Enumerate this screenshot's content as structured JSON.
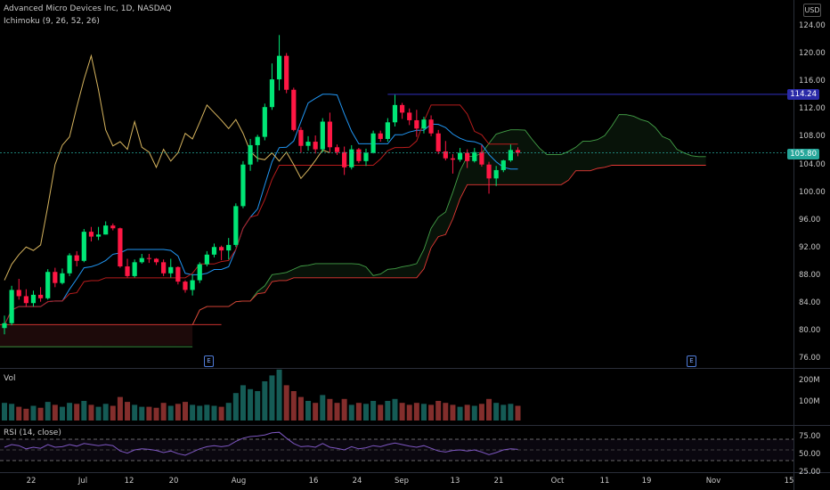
{
  "header": {
    "symbol_line": "Advanced Micro Devices Inc, 1D, NASDAQ",
    "indicator_ichimoku": "Ichimoku (9, 26, 52, 26)",
    "volume_label": "Vol",
    "rsi_label": "RSI (14, close)",
    "currency": "USD"
  },
  "price_axis": {
    "ticks": [
      "124.00",
      "120.00",
      "116.00",
      "112.00",
      "108.00",
      "104.00",
      "100.00",
      "96.00",
      "92.00",
      "88.00",
      "84.00",
      "80.00",
      "76.00"
    ],
    "tag_high": "114.24",
    "tag_last": "105.80",
    "tag_high_color": "#2a2aa8",
    "tag_last_color": "#26a69a"
  },
  "volume_axis": {
    "ticks": [
      "200M",
      "100M"
    ]
  },
  "rsi_axis": {
    "ticks": [
      "75.00",
      "50.00",
      "25.00"
    ]
  },
  "time_axis": {
    "labels": [
      "22",
      "Jul",
      "12",
      "20",
      "Aug",
      "16",
      "24",
      "Sep",
      "13",
      "21",
      "Oct",
      "11",
      "19",
      "Nov",
      "15"
    ]
  },
  "earnings_marker": "E",
  "colors": {
    "up": "#26a69a",
    "down": "#ef5350",
    "bright_up": "#00e676",
    "bright_down": "#ff1744",
    "tenkan": "#2196f3",
    "kijun": "#b71c1c",
    "chikou": "#d6b45e",
    "span_a": "#43a047",
    "span_b": "#e53935",
    "rsi": "#7e57c2"
  },
  "chart_data": {
    "type": "candlestick",
    "series_ohlc": [
      [
        80.5,
        82.3,
        79.6,
        81.2
      ],
      [
        81.2,
        86.6,
        80.9,
        86.0
      ],
      [
        86.0,
        87.6,
        84.6,
        85.1
      ],
      [
        85.1,
        86.1,
        83.6,
        84.1
      ],
      [
        84.1,
        85.9,
        83.6,
        85.3
      ],
      [
        85.3,
        86.4,
        84.3,
        84.8
      ],
      [
        84.8,
        89.0,
        84.6,
        88.6
      ],
      [
        88.6,
        89.2,
        86.4,
        87.0
      ],
      [
        87.0,
        89.1,
        86.8,
        88.4
      ],
      [
        88.4,
        91.3,
        88.0,
        91.0
      ],
      [
        91.0,
        91.6,
        89.4,
        90.2
      ],
      [
        90.2,
        94.8,
        90.0,
        94.4
      ],
      [
        94.4,
        95.1,
        93.0,
        93.7
      ],
      [
        93.7,
        95.1,
        93.2,
        94.0
      ],
      [
        94.0,
        95.9,
        94.0,
        95.3
      ],
      [
        95.3,
        95.6,
        94.6,
        94.9
      ],
      [
        94.9,
        95.0,
        89.2,
        89.4
      ],
      [
        89.4,
        90.5,
        87.8,
        88.0
      ],
      [
        88.0,
        90.4,
        87.8,
        90.0
      ],
      [
        90.0,
        91.2,
        89.8,
        90.6
      ],
      [
        90.6,
        91.2,
        89.9,
        90.5
      ],
      [
        90.5,
        90.6,
        89.6,
        90.0
      ],
      [
        90.0,
        90.4,
        88.0,
        88.4
      ],
      [
        88.4,
        90.5,
        87.8,
        89.3
      ],
      [
        89.3,
        89.4,
        86.8,
        87.2
      ],
      [
        87.2,
        87.4,
        85.6,
        86.0
      ],
      [
        86.0,
        88.2,
        85.2,
        87.4
      ],
      [
        87.4,
        90.0,
        87.0,
        89.7
      ],
      [
        89.7,
        91.6,
        89.4,
        91.1
      ],
      [
        91.1,
        92.7,
        90.7,
        92.2
      ],
      [
        92.2,
        92.4,
        90.3,
        91.7
      ],
      [
        91.7,
        93.5,
        90.4,
        92.5
      ],
      [
        92.5,
        98.5,
        92.2,
        98.1
      ],
      [
        98.1,
        104.6,
        97.8,
        104.1
      ],
      [
        104.1,
        107.8,
        103.2,
        106.9
      ],
      [
        106.9,
        108.4,
        104.5,
        108.1
      ],
      [
        108.1,
        112.9,
        107.6,
        112.4
      ],
      [
        112.4,
        118.7,
        112.0,
        116.4
      ],
      [
        116.4,
        122.8,
        114.8,
        119.8
      ],
      [
        119.8,
        120.2,
        114.4,
        114.9
      ],
      [
        114.9,
        115.2,
        108.9,
        109.1
      ],
      [
        109.1,
        109.5,
        105.8,
        106.8
      ],
      [
        106.8,
        108.2,
        106.1,
        107.4
      ],
      [
        107.4,
        108.3,
        105.7,
        106.3
      ],
      [
        106.3,
        110.8,
        105.9,
        110.3
      ],
      [
        110.3,
        111.6,
        105.9,
        106.6
      ],
      [
        106.6,
        107.0,
        105.5,
        105.9
      ],
      [
        105.9,
        106.7,
        102.6,
        103.7
      ],
      [
        103.7,
        106.9,
        103.4,
        106.3
      ],
      [
        106.3,
        106.5,
        104.3,
        104.6
      ],
      [
        104.6,
        106.4,
        103.9,
        105.8
      ],
      [
        105.8,
        109.0,
        105.7,
        108.6
      ],
      [
        108.6,
        109.0,
        107.4,
        107.8
      ],
      [
        107.8,
        110.8,
        107.4,
        110.2
      ],
      [
        110.2,
        114.2,
        109.6,
        112.7
      ],
      [
        112.7,
        113.0,
        110.7,
        111.6
      ],
      [
        111.6,
        112.2,
        109.8,
        110.5
      ],
      [
        110.5,
        112.0,
        108.1,
        109.3
      ],
      [
        109.3,
        111.0,
        108.6,
        110.6
      ],
      [
        110.6,
        111.2,
        108.2,
        108.6
      ],
      [
        108.6,
        109.1,
        105.6,
        106.0
      ],
      [
        106.0,
        107.5,
        104.7,
        105.0
      ],
      [
        105.0,
        105.6,
        102.8,
        104.8
      ],
      [
        104.8,
        106.5,
        104.5,
        105.8
      ],
      [
        105.8,
        106.3,
        103.6,
        104.6
      ],
      [
        104.6,
        106.5,
        104.4,
        105.9
      ],
      [
        105.9,
        106.9,
        103.8,
        104.1
      ],
      [
        104.1,
        104.5,
        99.9,
        102.1
      ],
      [
        102.1,
        103.9,
        101.0,
        103.3
      ],
      [
        103.3,
        104.8,
        103.0,
        104.7
      ],
      [
        104.7,
        107.0,
        104.5,
        106.2
      ],
      [
        106.2,
        106.6,
        105.3,
        105.8
      ]
    ],
    "volume_millions": [
      90,
      85,
      70,
      60,
      75,
      65,
      95,
      80,
      70,
      90,
      85,
      100,
      80,
      70,
      85,
      75,
      120,
      95,
      80,
      70,
      70,
      65,
      90,
      75,
      85,
      95,
      80,
      75,
      80,
      75,
      70,
      90,
      140,
      180,
      160,
      150,
      200,
      230,
      260,
      180,
      150,
      120,
      100,
      90,
      130,
      110,
      90,
      110,
      80,
      90,
      85,
      100,
      80,
      100,
      110,
      90,
      80,
      90,
      85,
      80,
      100,
      90,
      80,
      70,
      80,
      75,
      85,
      110,
      90,
      80,
      85,
      75
    ],
    "rsi_values": [
      55,
      60,
      58,
      52,
      55,
      53,
      60,
      55,
      56,
      60,
      57,
      62,
      60,
      58,
      60,
      58,
      48,
      44,
      50,
      52,
      51,
      49,
      45,
      48,
      43,
      40,
      46,
      52,
      56,
      58,
      56,
      58,
      66,
      72,
      75,
      76,
      78,
      82,
      83,
      72,
      62,
      56,
      57,
      55,
      62,
      55,
      53,
      50,
      56,
      52,
      54,
      58,
      56,
      60,
      63,
      60,
      57,
      55,
      58,
      53,
      48,
      46,
      49,
      50,
      48,
      50,
      46,
      41,
      45,
      50,
      52,
      51
    ],
    "ylim": [
      75,
      126
    ],
    "rsi_levels": [
      70,
      50,
      30
    ]
  }
}
